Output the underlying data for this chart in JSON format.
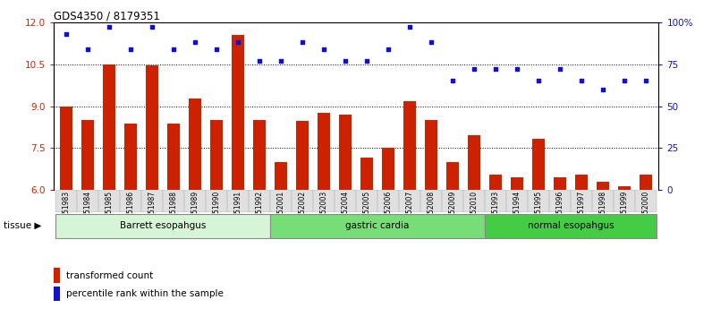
{
  "title": "GDS4350 / 8179351",
  "samples": [
    "GSM851983",
    "GSM851984",
    "GSM851985",
    "GSM851986",
    "GSM851987",
    "GSM851988",
    "GSM851989",
    "GSM851990",
    "GSM851991",
    "GSM851992",
    "GSM852001",
    "GSM852002",
    "GSM852003",
    "GSM852004",
    "GSM852005",
    "GSM852006",
    "GSM852007",
    "GSM852008",
    "GSM852009",
    "GSM852010",
    "GSM851993",
    "GSM851994",
    "GSM851995",
    "GSM851996",
    "GSM851997",
    "GSM851998",
    "GSM851999",
    "GSM852000"
  ],
  "bar_values": [
    8.98,
    8.52,
    10.48,
    8.38,
    10.45,
    8.38,
    9.28,
    8.52,
    11.55,
    8.52,
    7.0,
    8.48,
    8.75,
    8.7,
    7.15,
    7.5,
    9.18,
    8.52,
    7.0,
    7.95,
    6.55,
    6.45,
    7.85,
    6.45,
    6.55,
    6.3,
    6.15,
    6.55
  ],
  "scatter_values": [
    93,
    84,
    97,
    84,
    97,
    84,
    88,
    84,
    88,
    77,
    77,
    88,
    84,
    77,
    77,
    84,
    97,
    88,
    65,
    72,
    72,
    72,
    65,
    72,
    65,
    60,
    65,
    65
  ],
  "groups": [
    {
      "label": "Barrett esopahgus",
      "start": 0,
      "end": 9,
      "color": "#d6f5d6"
    },
    {
      "label": "gastric cardia",
      "start": 10,
      "end": 19,
      "color": "#77dd77"
    },
    {
      "label": "normal esopahgus",
      "start": 20,
      "end": 27,
      "color": "#44cc44"
    }
  ],
  "ylim_left": [
    6,
    12
  ],
  "ylim_right": [
    0,
    100
  ],
  "yticks_left": [
    6,
    7.5,
    9,
    10.5,
    12
  ],
  "yticks_right": [
    0,
    25,
    50,
    75,
    100
  ],
  "bar_color": "#cc2200",
  "scatter_color": "#1111cc",
  "bar_width": 0.55,
  "left_tick_color": "#cc2200",
  "right_tick_color": "#1111cc",
  "legend_bar_label": "transformed count",
  "legend_scatter_label": "percentile rank within the sample",
  "tissue_label": "tissue",
  "grid_dotted_yticks": [
    7.5,
    9,
    10.5
  ]
}
